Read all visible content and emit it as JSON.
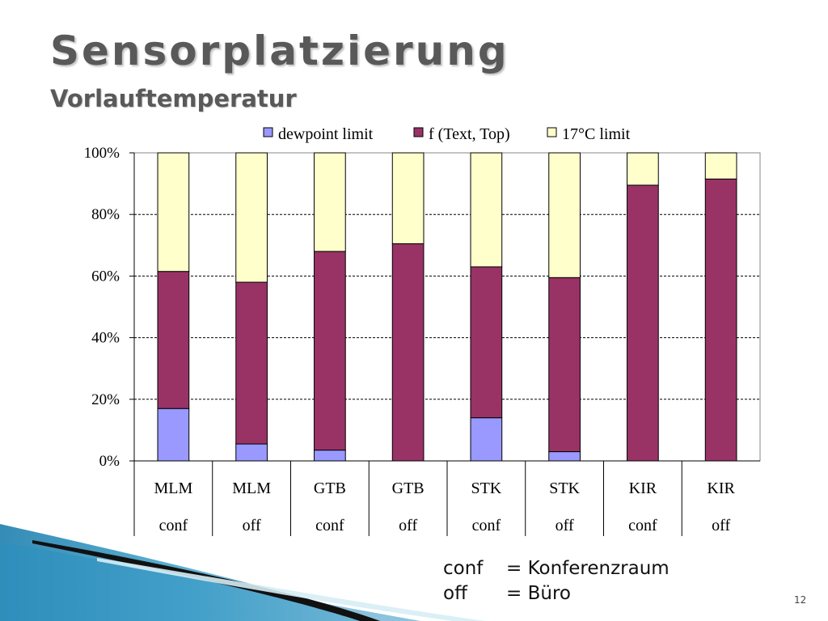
{
  "slide": {
    "title": "Sensorplatzierung",
    "subtitle": "Vorlauftemperatur",
    "page_number": "12",
    "abbreviations": [
      {
        "code": "conf",
        "meaning": "= Konferenzraum"
      },
      {
        "code": "off",
        "meaning": "= Büro"
      }
    ]
  },
  "chart_data": {
    "type": "bar",
    "stacked": "percent",
    "title": "",
    "xlabel": "",
    "ylabel": "",
    "ylim": [
      0,
      100
    ],
    "yticks": [
      "0%",
      "20%",
      "40%",
      "60%",
      "80%",
      "100%"
    ],
    "grid": true,
    "legend_position": "top",
    "categories": [
      {
        "site": "MLM",
        "room": "conf"
      },
      {
        "site": "MLM",
        "room": "off"
      },
      {
        "site": "GTB",
        "room": "conf"
      },
      {
        "site": "GTB",
        "room": "off"
      },
      {
        "site": "STK",
        "room": "conf"
      },
      {
        "site": "STK",
        "room": "off"
      },
      {
        "site": "KIR",
        "room": "conf"
      },
      {
        "site": "KIR",
        "room": "off"
      }
    ],
    "series": [
      {
        "name": "dewpoint limit",
        "color": "#9999ff",
        "values": [
          17,
          5.5,
          3.5,
          0,
          14,
          3,
          0,
          0
        ]
      },
      {
        "name": "f (Text, Top)",
        "color": "#993366",
        "values": [
          44.5,
          52.5,
          64.5,
          70.5,
          49,
          56.5,
          89.5,
          91.5
        ]
      },
      {
        "name": "17°C limit",
        "color": "#ffffcc",
        "values": [
          38.5,
          42,
          32,
          29.5,
          37,
          40.5,
          10.5,
          8.5
        ]
      }
    ]
  }
}
